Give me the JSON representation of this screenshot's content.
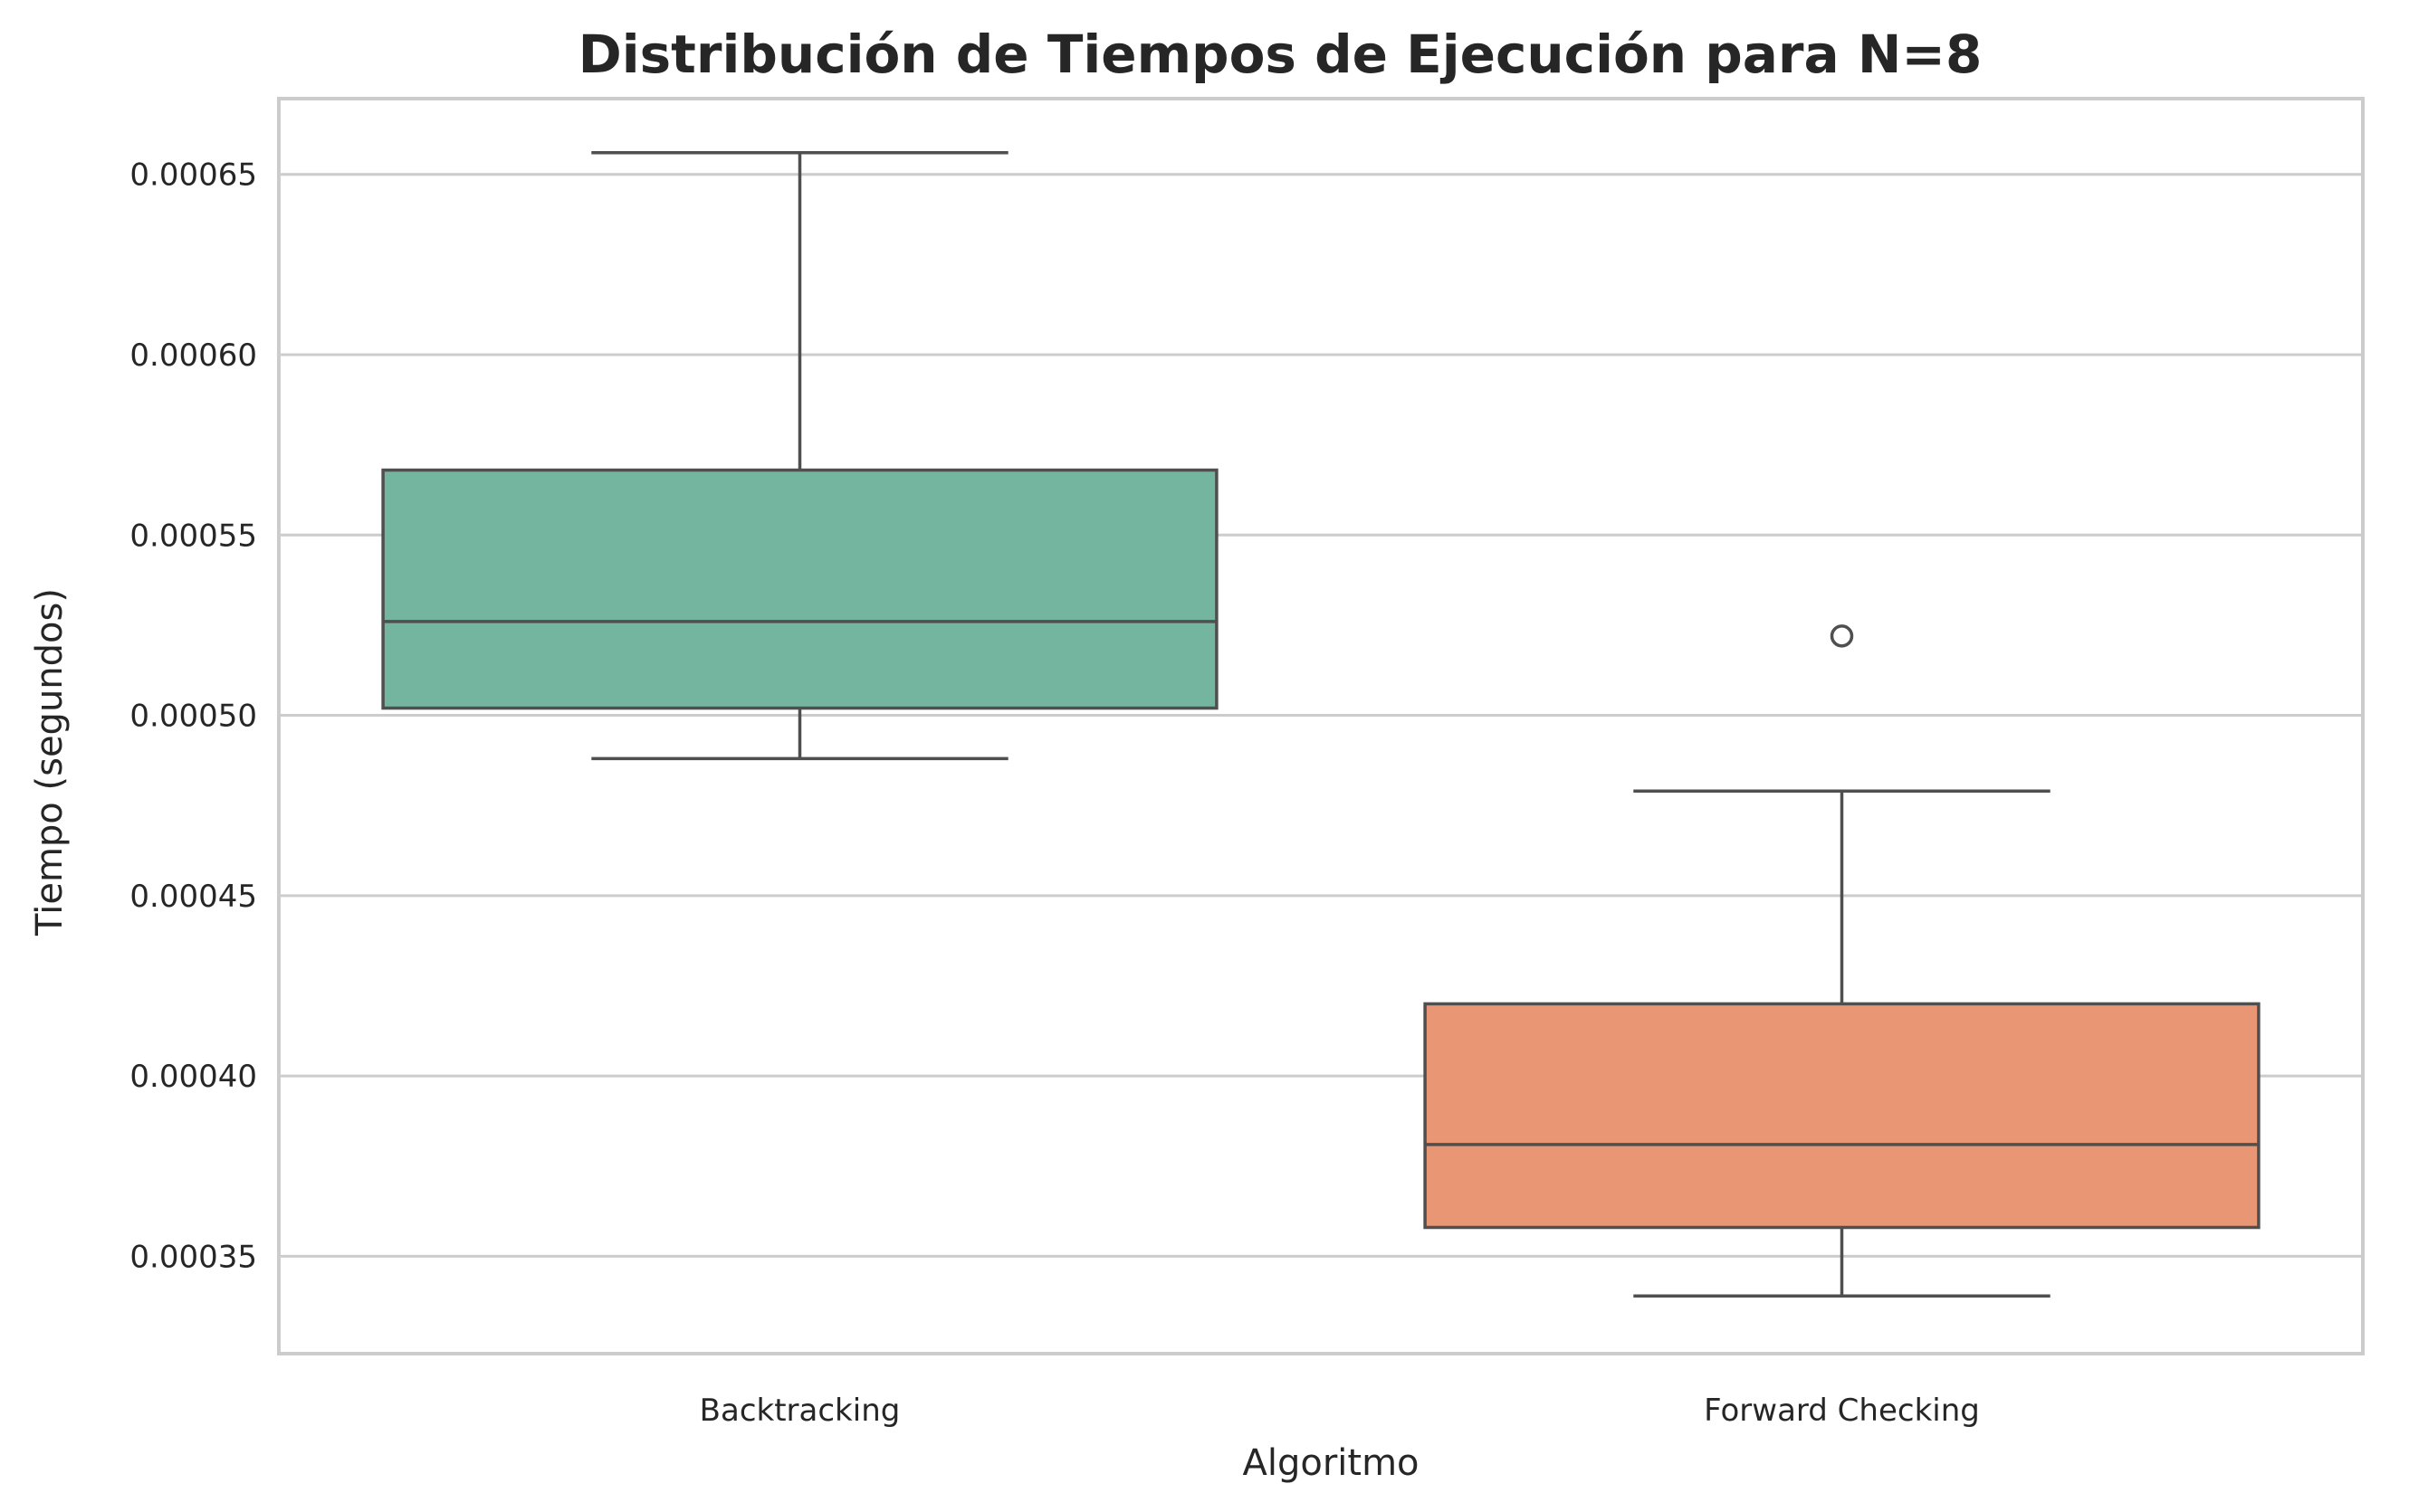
{
  "chart_data": {
    "type": "box",
    "title": "Distribución de Tiempos de Ejecución para N=8",
    "xlabel": "Algoritmo",
    "ylabel": "Tiempo (segundos)",
    "ylim": [
      0.000323,
      0.000671
    ],
    "yticks": [
      0.00035,
      0.0004,
      0.00045,
      0.0005,
      0.00055,
      0.0006,
      0.00065
    ],
    "ytick_labels": [
      "0.00035",
      "0.00040",
      "0.00045",
      "0.00050",
      "0.00055",
      "0.00060",
      "0.00065"
    ],
    "grid": true,
    "categories": [
      "Backtracking",
      "Forward Checking"
    ],
    "boxes": [
      {
        "category": "Backtracking",
        "color": "#74b5a0",
        "whisker_low": 0.000488,
        "q1": 0.000502,
        "median": 0.000526,
        "q3": 0.000568,
        "whisker_high": 0.000656,
        "outliers": []
      },
      {
        "category": "Forward Checking",
        "color": "#e99674",
        "whisker_low": 0.000339,
        "q1": 0.000358,
        "median": 0.000381,
        "q3": 0.00042,
        "whisker_high": 0.000479,
        "outliers": [
          0.000522
        ]
      }
    ]
  }
}
